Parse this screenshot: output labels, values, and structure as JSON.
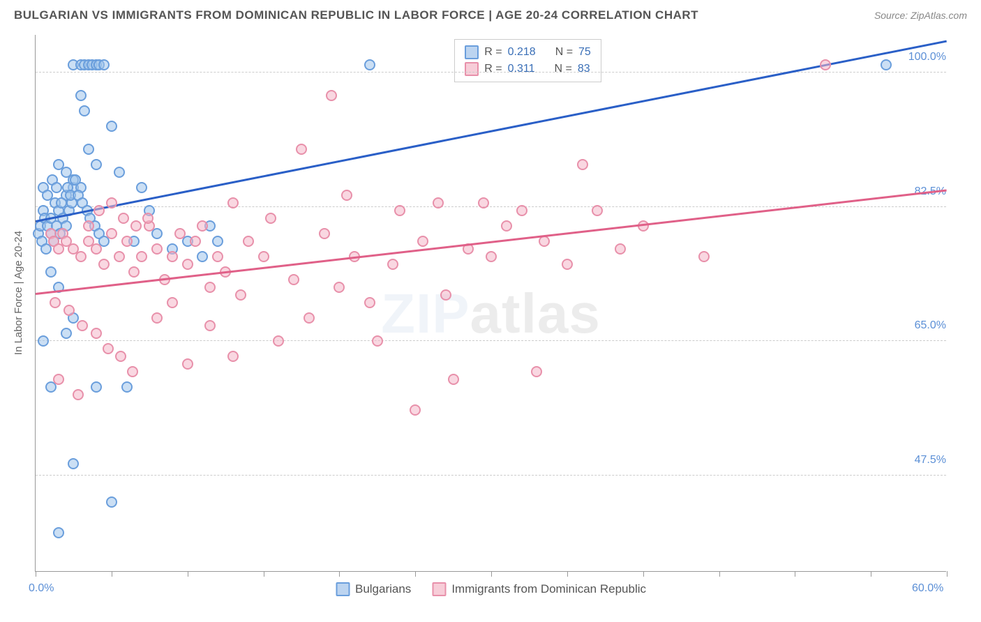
{
  "title": "BULGARIAN VS IMMIGRANTS FROM DOMINICAN REPUBLIC IN LABOR FORCE | AGE 20-24 CORRELATION CHART",
  "source": "Source: ZipAtlas.com",
  "y_axis_title": "In Labor Force | Age 20-24",
  "watermark_a": "ZIP",
  "watermark_b": "atlas",
  "chart": {
    "type": "scatter",
    "background_color": "#ffffff",
    "grid_color": "#cccccc",
    "axis_color": "#999999",
    "tick_label_color": "#5b8fd6",
    "xlim": [
      0,
      60
    ],
    "ylim": [
      35,
      105
    ],
    "x_ticks": [
      0,
      5,
      10,
      15,
      20,
      25,
      30,
      35,
      40,
      45,
      50,
      55,
      60
    ],
    "y_gridlines": [
      47.5,
      65.0,
      82.5,
      100.0
    ],
    "y_tick_labels": [
      "47.5%",
      "65.0%",
      "82.5%",
      "100.0%"
    ],
    "x_tick_labels": {
      "0": "0.0%",
      "60": "60.0%"
    },
    "marker_radius": 8,
    "marker_border_width": 2,
    "trend_line_width": 3
  },
  "legend_top": {
    "rows": [
      {
        "swatch_fill": "#bcd4f0",
        "swatch_border": "#6a9edc",
        "r_label": "R =",
        "r_val": "0.218",
        "n_label": "N =",
        "n_val": "75"
      },
      {
        "swatch_fill": "#f7cdd8",
        "swatch_border": "#e890aa",
        "r_label": "R =",
        "r_val": "0.311",
        "n_label": "N =",
        "n_val": "83"
      }
    ]
  },
  "legend_bottom": {
    "items": [
      {
        "swatch_fill": "#bcd4f0",
        "swatch_border": "#6a9edc",
        "label": "Bulgarians"
      },
      {
        "swatch_fill": "#f7cdd8",
        "swatch_border": "#e890aa",
        "label": "Immigrants from Dominican Republic"
      }
    ]
  },
  "series": [
    {
      "name": "Bulgarians",
      "marker_fill": "rgba(160,196,235,0.55)",
      "marker_border": "#6a9edc",
      "trend_color": "#2a5fc7",
      "trend": {
        "x1": 0,
        "y1": 80.5,
        "x2": 60,
        "y2": 104
      },
      "points": [
        [
          0.2,
          79
        ],
        [
          0.3,
          80
        ],
        [
          0.4,
          78
        ],
        [
          0.5,
          82
        ],
        [
          0.6,
          81
        ],
        [
          0.7,
          77
        ],
        [
          0.8,
          80
        ],
        [
          1.0,
          79
        ],
        [
          1.0,
          81
        ],
        [
          1.2,
          78
        ],
        [
          1.3,
          83
        ],
        [
          1.4,
          80
        ],
        [
          1.5,
          82
        ],
        [
          1.6,
          79
        ],
        [
          1.8,
          81
        ],
        [
          2.0,
          80
        ],
        [
          2.0,
          84
        ],
        [
          2.2,
          82
        ],
        [
          2.4,
          83
        ],
        [
          2.5,
          85
        ],
        [
          2.5,
          101
        ],
        [
          3.0,
          101
        ],
        [
          3.2,
          101
        ],
        [
          3.5,
          101
        ],
        [
          3.7,
          101
        ],
        [
          4.0,
          101
        ],
        [
          4.2,
          101
        ],
        [
          4.5,
          101
        ],
        [
          3.0,
          97
        ],
        [
          3.2,
          95
        ],
        [
          1.5,
          88
        ],
        [
          2.0,
          87
        ],
        [
          2.5,
          86
        ],
        [
          3.0,
          85
        ],
        [
          3.5,
          90
        ],
        [
          4.0,
          88
        ],
        [
          5.0,
          93
        ],
        [
          5.5,
          87
        ],
        [
          7.0,
          85
        ],
        [
          7.5,
          82
        ],
        [
          6.5,
          78
        ],
        [
          8.0,
          79
        ],
        [
          9.0,
          77
        ],
        [
          10.0,
          78
        ],
        [
          11.0,
          76
        ],
        [
          11.5,
          80
        ],
        [
          12.0,
          78
        ],
        [
          1.0,
          74
        ],
        [
          1.5,
          72
        ],
        [
          2.0,
          66
        ],
        [
          2.5,
          68
        ],
        [
          1.0,
          59
        ],
        [
          0.5,
          65
        ],
        [
          4.0,
          59
        ],
        [
          6.0,
          59
        ],
        [
          2.5,
          49
        ],
        [
          5.0,
          44
        ],
        [
          1.5,
          40
        ],
        [
          22.0,
          101
        ],
        [
          56.0,
          101
        ],
        [
          0.5,
          85
        ],
        [
          0.8,
          84
        ],
        [
          1.1,
          86
        ],
        [
          1.4,
          85
        ],
        [
          1.7,
          83
        ],
        [
          2.1,
          85
        ],
        [
          2.3,
          84
        ],
        [
          2.6,
          86
        ],
        [
          2.8,
          84
        ],
        [
          3.1,
          83
        ],
        [
          3.4,
          82
        ],
        [
          3.6,
          81
        ],
        [
          3.9,
          80
        ],
        [
          4.2,
          79
        ],
        [
          4.5,
          78
        ]
      ]
    },
    {
      "name": "Immigrants from Dominican Republic",
      "marker_fill": "rgba(244,182,200,0.55)",
      "marker_border": "#e890aa",
      "trend_color": "#e06088",
      "trend": {
        "x1": 0,
        "y1": 71,
        "x2": 60,
        "y2": 84.5
      },
      "points": [
        [
          1.0,
          79
        ],
        [
          1.2,
          78
        ],
        [
          1.5,
          77
        ],
        [
          1.8,
          79
        ],
        [
          2.0,
          78
        ],
        [
          2.5,
          77
        ],
        [
          3.0,
          76
        ],
        [
          3.5,
          78
        ],
        [
          4.0,
          77
        ],
        [
          4.5,
          75
        ],
        [
          5.0,
          79
        ],
        [
          5.5,
          76
        ],
        [
          6.0,
          78
        ],
        [
          6.5,
          74
        ],
        [
          7.0,
          76
        ],
        [
          7.5,
          80
        ],
        [
          8.0,
          77
        ],
        [
          8.5,
          73
        ],
        [
          9.0,
          76
        ],
        [
          9.5,
          79
        ],
        [
          10.0,
          75
        ],
        [
          10.5,
          78
        ],
        [
          11.0,
          80
        ],
        [
          11.5,
          72
        ],
        [
          12.0,
          76
        ],
        [
          12.5,
          74
        ],
        [
          13.0,
          83
        ],
        [
          13.5,
          71
        ],
        [
          14.0,
          78
        ],
        [
          15.0,
          76
        ],
        [
          15.5,
          81
        ],
        [
          16.0,
          65
        ],
        [
          17.0,
          73
        ],
        [
          17.5,
          90
        ],
        [
          18.0,
          68
        ],
        [
          19.0,
          79
        ],
        [
          19.5,
          97
        ],
        [
          20.0,
          72
        ],
        [
          20.5,
          84
        ],
        [
          21.0,
          76
        ],
        [
          22.0,
          70
        ],
        [
          22.5,
          65
        ],
        [
          23.5,
          75
        ],
        [
          24.0,
          82
        ],
        [
          25.0,
          56
        ],
        [
          25.5,
          78
        ],
        [
          26.5,
          83
        ],
        [
          27.0,
          71
        ],
        [
          27.5,
          60
        ],
        [
          28.5,
          77
        ],
        [
          29.5,
          83
        ],
        [
          30.0,
          76
        ],
        [
          31.0,
          80
        ],
        [
          32.0,
          82
        ],
        [
          33.0,
          61
        ],
        [
          33.5,
          78
        ],
        [
          35.0,
          75
        ],
        [
          36.0,
          88
        ],
        [
          37.0,
          82
        ],
        [
          38.5,
          77
        ],
        [
          40.0,
          80
        ],
        [
          44.0,
          76
        ],
        [
          52.0,
          101
        ],
        [
          1.3,
          70
        ],
        [
          2.2,
          69
        ],
        [
          3.1,
          67
        ],
        [
          4.0,
          66
        ],
        [
          4.8,
          64
        ],
        [
          5.6,
          63
        ],
        [
          6.4,
          61
        ],
        [
          1.5,
          60
        ],
        [
          2.8,
          58
        ],
        [
          8.0,
          68
        ],
        [
          9.0,
          70
        ],
        [
          10.0,
          62
        ],
        [
          11.5,
          67
        ],
        [
          13.0,
          63
        ],
        [
          3.5,
          80
        ],
        [
          4.2,
          82
        ],
        [
          5.0,
          83
        ],
        [
          5.8,
          81
        ],
        [
          6.6,
          80
        ],
        [
          7.4,
          81
        ]
      ]
    }
  ]
}
